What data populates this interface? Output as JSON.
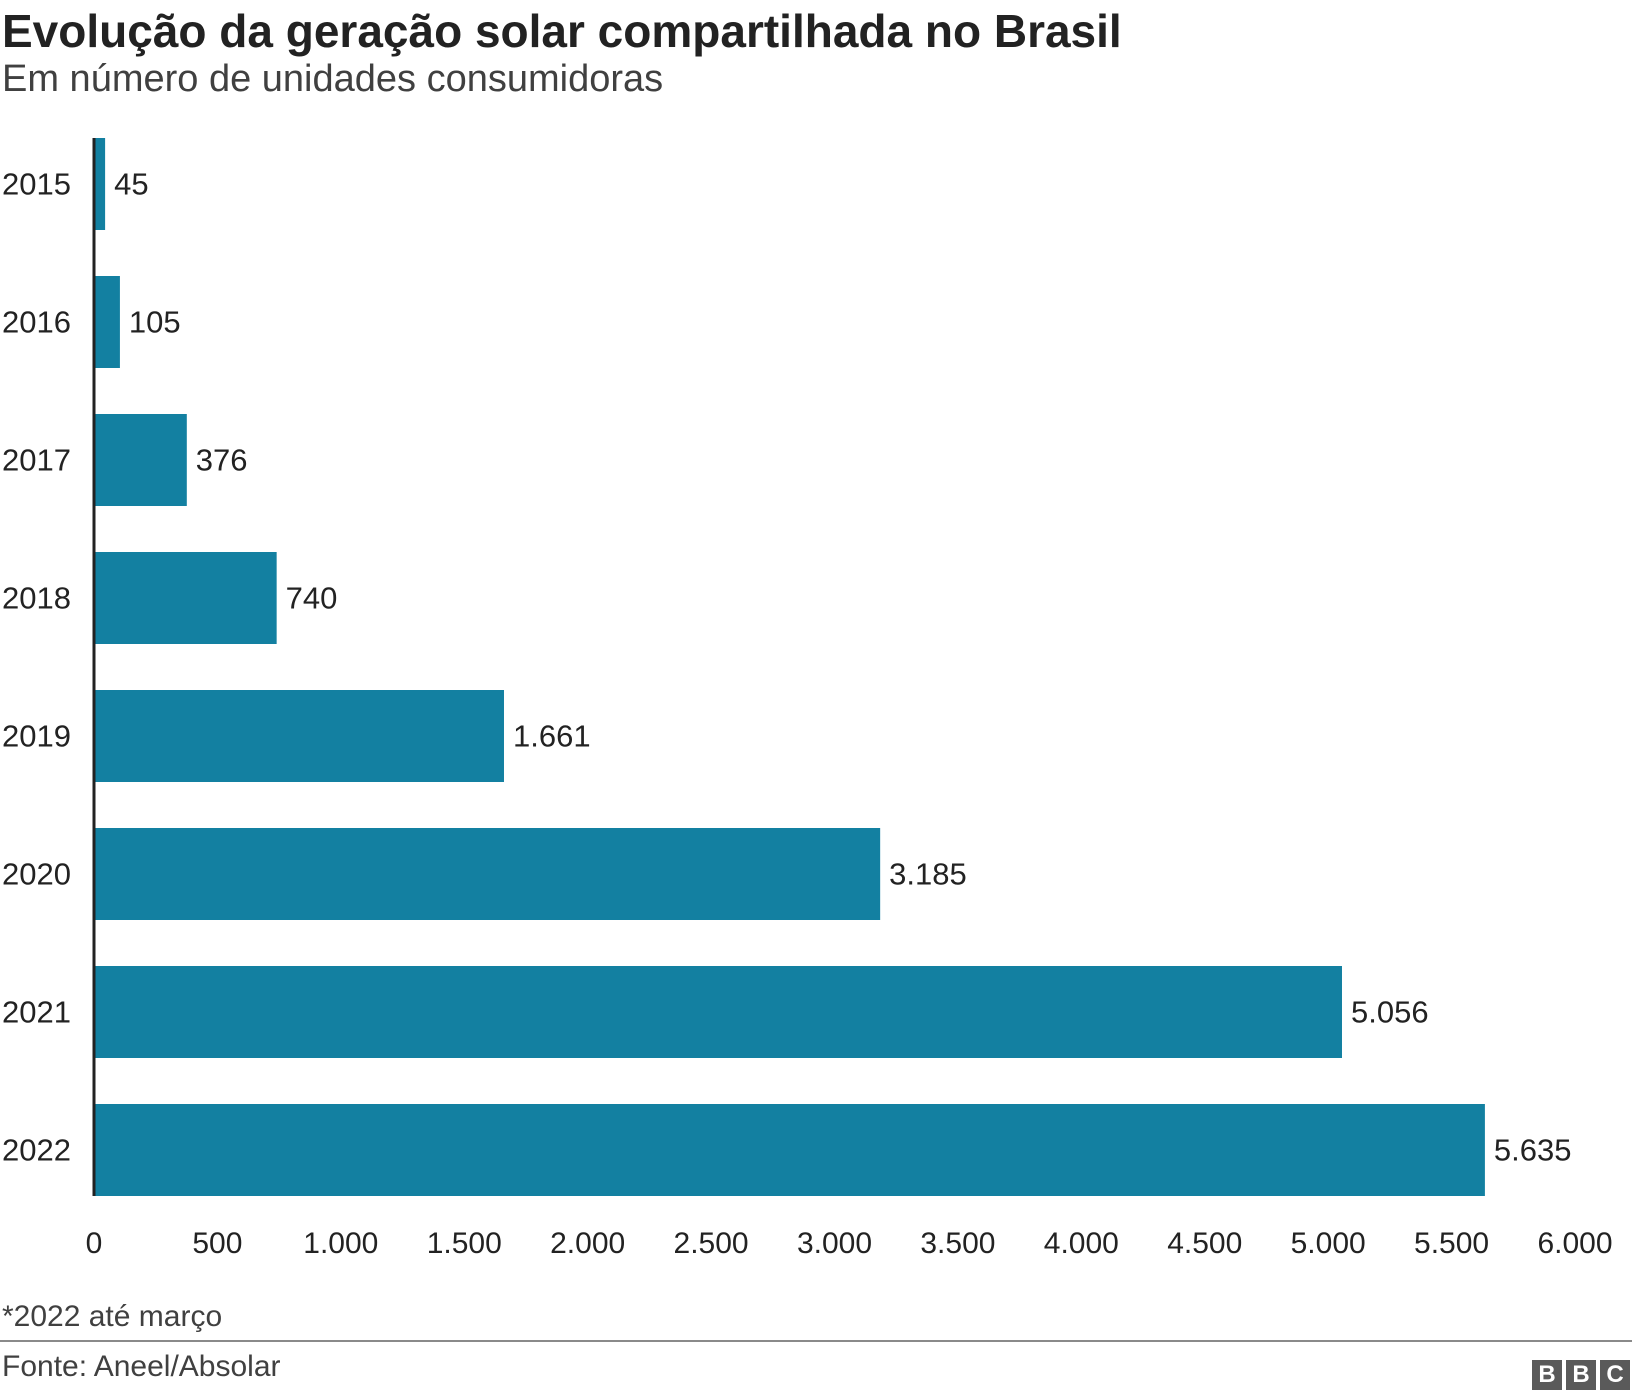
{
  "chart_data": {
    "type": "bar",
    "orientation": "horizontal",
    "title": "Evolução da geração solar compartilhada no Brasil",
    "subtitle": "Em número de unidades consumidoras",
    "categories": [
      "2015",
      "2016",
      "2017",
      "2018",
      "2019",
      "2020",
      "2021",
      "2022"
    ],
    "values": [
      45,
      105,
      376,
      740,
      1661,
      3185,
      5056,
      5635
    ],
    "value_labels": [
      "45",
      "105",
      "376",
      "740",
      "1.661",
      "3.185",
      "5.056",
      "5.635"
    ],
    "xlim": [
      0,
      6000
    ],
    "xticks": [
      0,
      500,
      1000,
      1500,
      2000,
      2500,
      3000,
      3500,
      4000,
      4500,
      5000,
      5500,
      6000
    ],
    "xtick_labels": [
      "0",
      "500",
      "1.000",
      "1.500",
      "2.000",
      "2.500",
      "3.000",
      "3.500",
      "4.000",
      "4.500",
      "5.000",
      "5.500",
      "6.000"
    ],
    "xlabel": "",
    "ylabel": "",
    "grid": false,
    "bar_color": "#1380a1"
  },
  "footnote": "*2022 até março",
  "source": "Fonte: Aneel/Absolar",
  "logo": [
    "B",
    "B",
    "C"
  ]
}
